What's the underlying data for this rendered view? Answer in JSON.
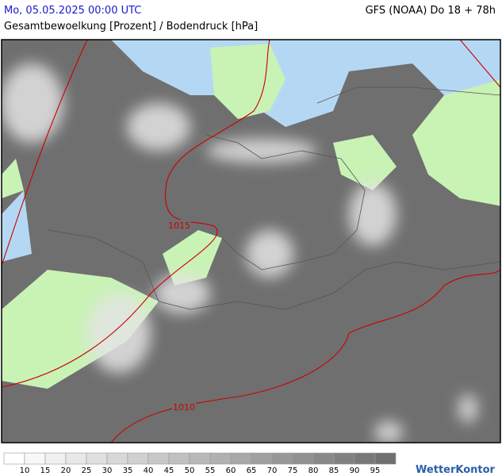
{
  "header": {
    "datetime": "Mo, 05.05.2025 00:00 UTC",
    "model": "GFS (NOAA) Do 18 + 78h",
    "subtitle": "Gesamtbewoelkung [Prozent] / Bodendruck [hPa]"
  },
  "isobars": [
    "1015",
    "1010"
  ],
  "legend": {
    "labels": [
      10,
      15,
      20,
      25,
      30,
      35,
      40,
      45,
      50,
      55,
      60,
      65,
      70,
      75,
      80,
      85,
      90,
      95
    ],
    "colors": [
      "#ffffff",
      "#f8f8f8",
      "#f0f0f0",
      "#e8e8e8",
      "#e0e0e0",
      "#d8d8d8",
      "#d0d0d0",
      "#c8c8c8",
      "#c0c0c0",
      "#b8b8b8",
      "#b0b0b0",
      "#a8a8a8",
      "#a0a0a0",
      "#989898",
      "#909090",
      "#888888",
      "#808080",
      "#787878",
      "#707070"
    ]
  },
  "logo": "WetterKontor"
}
